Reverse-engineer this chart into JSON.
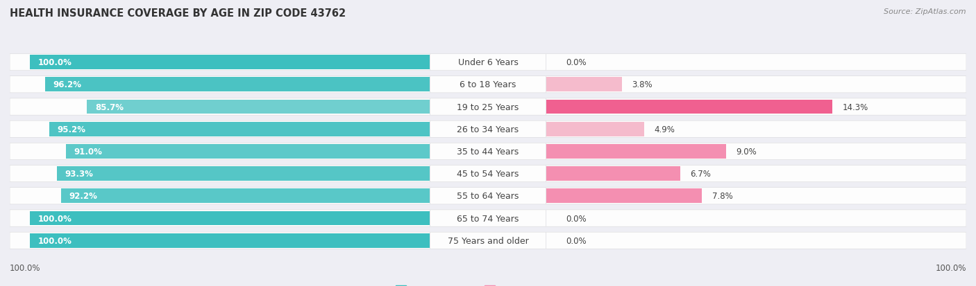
{
  "title": "HEALTH INSURANCE COVERAGE BY AGE IN ZIP CODE 43762",
  "source": "Source: ZipAtlas.com",
  "categories": [
    "Under 6 Years",
    "6 to 18 Years",
    "19 to 25 Years",
    "26 to 34 Years",
    "35 to 44 Years",
    "45 to 54 Years",
    "55 to 64 Years",
    "65 to 74 Years",
    "75 Years and older"
  ],
  "with_coverage": [
    100.0,
    96.2,
    85.7,
    95.2,
    91.0,
    93.3,
    92.2,
    100.0,
    100.0
  ],
  "without_coverage": [
    0.0,
    3.8,
    14.3,
    4.9,
    9.0,
    6.7,
    7.8,
    0.0,
    0.0
  ],
  "color_with": "#3DBFBF",
  "color_with_light": "#85D5D5",
  "color_without_strong": "#F06090",
  "color_without_light": "#F5AABB",
  "background_color": "#eeeef4",
  "row_bg_color": "#f5f5f8",
  "title_fontsize": 10.5,
  "label_fontsize": 9,
  "bar_label_fontsize": 8.5,
  "xlim_left": 100,
  "xlim_right": 20,
  "without_coverage_display_max": 20
}
